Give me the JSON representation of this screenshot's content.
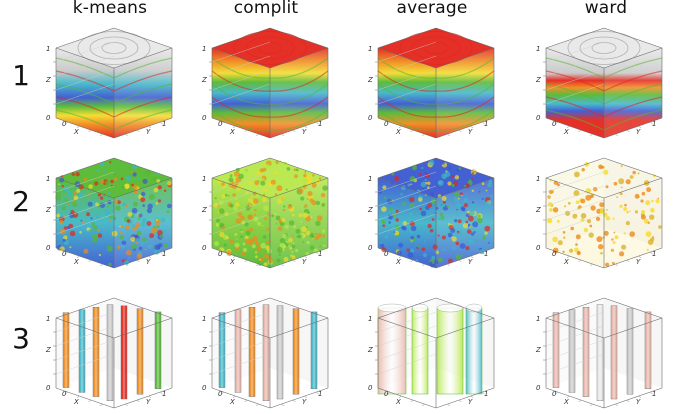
{
  "columns": [
    "k-means",
    "complit",
    "average",
    "ward"
  ],
  "rows": [
    "1",
    "2",
    "3"
  ],
  "axes": {
    "x": "X",
    "y": "Y",
    "z": "Z",
    "zero": "0",
    "one": "1"
  },
  "palette": {
    "red": "#e3251b",
    "orange": "#f08a1c",
    "yellow": "#f4dc2a",
    "green": "#55b832",
    "cyan": "#3fb6c8",
    "blue": "#3a58d2",
    "white": "#e8e8e8",
    "grey": "#c8c8c8",
    "pink": "#e8b4a8",
    "lime": "#b6e84a",
    "gold": "#d9b428"
  }
}
